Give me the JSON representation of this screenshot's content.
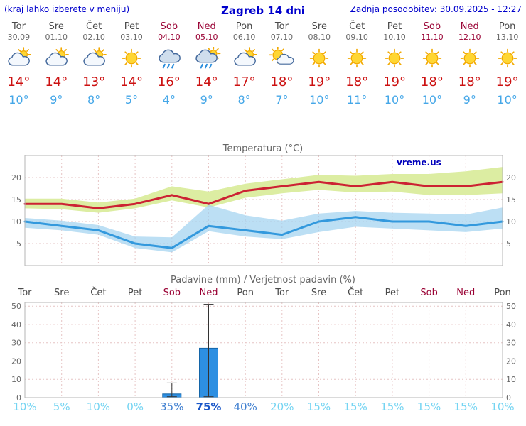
{
  "header": {
    "left_note": "(kraj lahko izberete v meniju)",
    "title": "Zagreb 14 dni",
    "updated": "Zadnja posodobitev: 30.09.2025 - 12:27"
  },
  "colors": {
    "header_blue": "#0000cc",
    "day_gray": "#4a4a4a",
    "date_gray": "#6b6b6b",
    "weekend_red": "#990033",
    "tmax_red": "#cc1111",
    "tmin_blue": "#45a7e8",
    "title_gray": "#666666",
    "axis_text": "#666666",
    "frame_gray": "#b5b5b5",
    "grid_pink": "#e6c4c4",
    "temp_line_max": "#cc2233",
    "temp_band_max": "#dcedA2",
    "temp_line_min": "#3399dd",
    "temp_band_min": "#9fd2ef",
    "bar_blue": "#2d8fe2",
    "bar_border": "#1465a8",
    "whisker_dark": "#333333",
    "prob_low": "#74d4f2",
    "prob_mid": "#3f7fd0",
    "prob_high": "#1a57c8",
    "watermark_blue": "#0000bb"
  },
  "days": [
    {
      "name": "Tor",
      "date": "30.09",
      "weekend": false,
      "icon": "mostly-cloudy",
      "tmax": 14,
      "tmin": 10
    },
    {
      "name": "Sre",
      "date": "01.10",
      "weekend": false,
      "icon": "mostly-cloudy",
      "tmax": 14,
      "tmin": 9
    },
    {
      "name": "Čet",
      "date": "02.10",
      "weekend": false,
      "icon": "mostly-cloudy",
      "tmax": 13,
      "tmin": 8
    },
    {
      "name": "Pet",
      "date": "03.10",
      "weekend": false,
      "icon": "sun",
      "tmax": 14,
      "tmin": 5
    },
    {
      "name": "Sob",
      "date": "04.10",
      "weekend": true,
      "icon": "rain",
      "tmax": 16,
      "tmin": 4
    },
    {
      "name": "Ned",
      "date": "05.10",
      "weekend": true,
      "icon": "rain-sun",
      "tmax": 14,
      "tmin": 9
    },
    {
      "name": "Pon",
      "date": "06.10",
      "weekend": false,
      "icon": "mostly-cloudy",
      "tmax": 17,
      "tmin": 8
    },
    {
      "name": "Tor",
      "date": "07.10",
      "weekend": false,
      "icon": "mostly-sunny",
      "tmax": 18,
      "tmin": 7
    },
    {
      "name": "Sre",
      "date": "08.10",
      "weekend": false,
      "icon": "sun",
      "tmax": 19,
      "tmin": 10
    },
    {
      "name": "Čet",
      "date": "09.10",
      "weekend": false,
      "icon": "sun",
      "tmax": 18,
      "tmin": 11
    },
    {
      "name": "Pet",
      "date": "10.10",
      "weekend": false,
      "icon": "sun",
      "tmax": 19,
      "tmin": 10
    },
    {
      "name": "Sob",
      "date": "11.10",
      "weekend": true,
      "icon": "sun",
      "tmax": 18,
      "tmin": 10
    },
    {
      "name": "Ned",
      "date": "12.10",
      "weekend": true,
      "icon": "sun",
      "tmax": 18,
      "tmin": 9
    },
    {
      "name": "Pon",
      "date": "13.10",
      "weekend": false,
      "icon": "sun",
      "tmax": 19,
      "tmin": 10
    }
  ],
  "chart_data": [
    {
      "type": "line",
      "title": "Temperatura (°C)",
      "watermark": "vreme.us",
      "categories": [
        "Tor",
        "Sre",
        "Čet",
        "Pet",
        "Sob",
        "Ned",
        "Pon",
        "Tor",
        "Sre",
        "Čet",
        "Pet",
        "Sob",
        "Ned",
        "Pon"
      ],
      "ylim": [
        0,
        25
      ],
      "yticks": [
        5,
        10,
        15,
        20
      ],
      "grid": true,
      "legend": "none",
      "series": [
        {
          "name": "tmax",
          "color": "#cc2233",
          "values": [
            14,
            14,
            13,
            14,
            16,
            14,
            17,
            18,
            19,
            18,
            19,
            18,
            18,
            19
          ]
        },
        {
          "name": "tmax_range_upper",
          "values": [
            15.2,
            15.2,
            14.3,
            15.2,
            18,
            16.8,
            18.6,
            19.6,
            20.6,
            20.4,
            20.8,
            20.8,
            21.4,
            22.4
          ]
        },
        {
          "name": "tmax_range_lower",
          "values": [
            13,
            12.8,
            12,
            13,
            14.8,
            13.2,
            15.4,
            16.4,
            17.2,
            16.6,
            16.8,
            16,
            16,
            16.4
          ]
        },
        {
          "name": "tmin",
          "color": "#3399dd",
          "values": [
            10,
            9,
            8,
            5,
            4,
            9,
            8,
            7,
            10,
            11,
            10,
            10,
            9,
            10
          ]
        },
        {
          "name": "tmin_range_upper",
          "values": [
            10.8,
            10.2,
            9.2,
            6.6,
            6.4,
            13.8,
            11.4,
            10.2,
            11.8,
            12.4,
            12,
            11.8,
            11.6,
            13.2
          ]
        },
        {
          "name": "tmin_range_lower",
          "values": [
            8.6,
            8,
            7,
            4,
            3,
            7.8,
            6.6,
            6,
            7.6,
            8.8,
            8.4,
            8,
            7.6,
            8.4
          ]
        }
      ]
    },
    {
      "type": "bar",
      "title": "Padavine (mm) / Verjetnost padavin (%)",
      "categories": [
        "Tor",
        "Sre",
        "Čet",
        "Pet",
        "Sob",
        "Ned",
        "Pon",
        "Tor",
        "Sre",
        "Čet",
        "Pet",
        "Sob",
        "Ned",
        "Pon"
      ],
      "ylim": [
        0,
        52
      ],
      "yticks": [
        0,
        10,
        20,
        30,
        40,
        50
      ],
      "grid": true,
      "values": [
        0,
        0,
        0,
        0,
        2,
        27,
        0,
        0,
        0,
        0,
        0,
        0,
        0,
        0
      ],
      "whisker_high": [
        0,
        0,
        0,
        0,
        8,
        51,
        0,
        0,
        0,
        0,
        0,
        0,
        0,
        0
      ],
      "probabilities": [
        10,
        5,
        10,
        0,
        35,
        75,
        40,
        20,
        15,
        15,
        15,
        15,
        15,
        10
      ]
    }
  ]
}
